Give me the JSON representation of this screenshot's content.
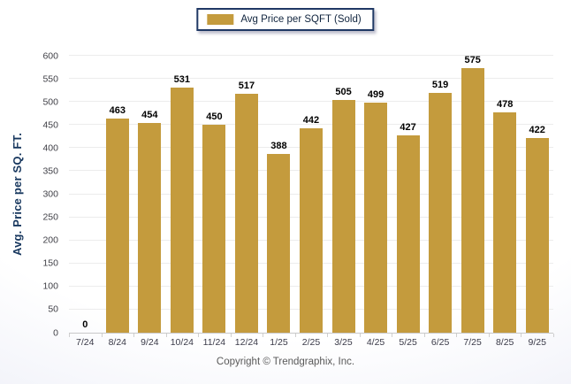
{
  "legend": {
    "label": "Avg Price per SQFT (Sold)"
  },
  "footer": {
    "copyright": "Copyright © Trendgraphix, Inc."
  },
  "chart_data": {
    "type": "bar",
    "title": "",
    "categories": [
      "7/24",
      "8/24",
      "9/24",
      "10/24",
      "11/24",
      "12/24",
      "1/25",
      "2/25",
      "3/25",
      "4/25",
      "5/25",
      "6/25",
      "7/25",
      "8/25",
      "9/25"
    ],
    "series": [
      {
        "name": "Avg Price per SQFT (Sold)",
        "values": [
          0,
          463,
          454,
          531,
          450,
          517,
          388,
          442,
          505,
          499,
          427,
          519,
          575,
          478,
          422
        ]
      }
    ],
    "value_labels_shown": true,
    "xlabel": "",
    "ylabel": "Avg. Price per SQ. FT.",
    "ylim": [
      0,
      600
    ],
    "yticks": [
      0,
      50,
      100,
      150,
      200,
      250,
      300,
      350,
      400,
      450,
      500,
      550,
      600
    ],
    "grid": true,
    "legend_position": "top-center"
  },
  "colors": {
    "bar": "#C49B3D",
    "legend_border": "#1F3864",
    "y_title_text": "#17375E",
    "axis_tick_text": "#3F3F46",
    "value_label_text": "#000000",
    "gridline": "#ECECEC",
    "axis_line": "#C9C9C9",
    "footer_text": "#595959",
    "background_edge": "#E7E9F5"
  }
}
